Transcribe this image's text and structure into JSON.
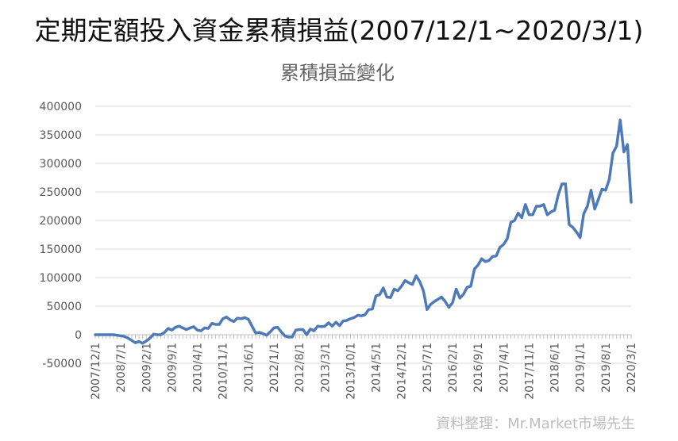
{
  "page": {
    "title": "定期定額投入資金累積損益(2007/12/1~2020/3/1)",
    "source": "資料整理：Mr.Market市場先生"
  },
  "chart_data": {
    "type": "line",
    "title": "累積損益變化",
    "xlabel": "",
    "ylabel": "",
    "ylim": [
      -50000,
      400000
    ],
    "yticks": [
      -50000,
      0,
      50000,
      100000,
      150000,
      200000,
      250000,
      300000,
      350000,
      400000
    ],
    "ytick_labels": [
      "-50000",
      "0",
      "50000",
      "100000",
      "150000",
      "200000",
      "250000",
      "300000",
      "350000",
      "400000"
    ],
    "xtick_labels": [
      "2007/12/1",
      "2008/7/1",
      "2009/2/1",
      "2009/9/1",
      "2010/4/1",
      "2010/11/1",
      "2011/6/1",
      "2012/1/1",
      "2012/8/1",
      "2013/3/1",
      "2013/10/1",
      "2014/5/1",
      "2014/12/1",
      "2015/7/1",
      "2016/2/1",
      "2016/9/1",
      "2017/4/1",
      "2017/11/1",
      "2018/6/1",
      "2019/1/1",
      "2019/8/1",
      "2020/3/1"
    ],
    "grid": true,
    "legend": "none",
    "line_color": "#4e7ab8",
    "series": [
      {
        "x": [
          "2007/12/1",
          "2008/1/1",
          "2008/2/1",
          "2008/3/1",
          "2008/4/1",
          "2008/5/1",
          "2008/6/1",
          "2008/7/1",
          "2008/8/1",
          "2008/9/1",
          "2008/10/1",
          "2008/11/1",
          "2008/12/1",
          "2009/1/1",
          "2009/2/1",
          "2009/3/1",
          "2009/4/1",
          "2009/5/1",
          "2009/6/1",
          "2009/7/1",
          "2009/8/1",
          "2009/9/1",
          "2009/10/1",
          "2009/11/1",
          "2009/12/1",
          "2010/1/1",
          "2010/2/1",
          "2010/3/1",
          "2010/4/1",
          "2010/5/1",
          "2010/6/1",
          "2010/7/1",
          "2010/8/1",
          "2010/9/1",
          "2010/10/1",
          "2010/11/1",
          "2010/12/1",
          "2011/1/1",
          "2011/2/1",
          "2011/3/1",
          "2011/4/1",
          "2011/5/1",
          "2011/6/1",
          "2011/7/1",
          "2011/8/1",
          "2011/9/1",
          "2011/10/1",
          "2011/11/1",
          "2011/12/1",
          "2012/1/1",
          "2012/2/1",
          "2012/3/1",
          "2012/4/1",
          "2012/5/1",
          "2012/6/1",
          "2012/7/1",
          "2012/8/1",
          "2012/9/1",
          "2012/10/1",
          "2012/11/1",
          "2012/12/1",
          "2013/1/1",
          "2013/2/1",
          "2013/3/1",
          "2013/4/1",
          "2013/5/1",
          "2013/6/1",
          "2013/7/1",
          "2013/8/1",
          "2013/9/1",
          "2013/10/1",
          "2013/11/1",
          "2013/12/1",
          "2014/1/1",
          "2014/2/1",
          "2014/3/1",
          "2014/4/1",
          "2014/5/1",
          "2014/6/1",
          "2014/7/1",
          "2014/8/1",
          "2014/9/1",
          "2014/10/1",
          "2014/11/1",
          "2014/12/1",
          "2015/1/1",
          "2015/2/1",
          "2015/3/1",
          "2015/4/1",
          "2015/5/1",
          "2015/6/1",
          "2015/7/1",
          "2015/8/1",
          "2015/9/1",
          "2015/10/1",
          "2015/11/1",
          "2015/12/1",
          "2016/1/1",
          "2016/2/1",
          "2016/3/1",
          "2016/4/1",
          "2016/5/1",
          "2016/6/1",
          "2016/7/1",
          "2016/8/1",
          "2016/9/1",
          "2016/10/1",
          "2016/11/1",
          "2016/12/1",
          "2017/1/1",
          "2017/2/1",
          "2017/3/1",
          "2017/4/1",
          "2017/5/1",
          "2017/6/1",
          "2017/7/1",
          "2017/8/1",
          "2017/9/1",
          "2017/10/1",
          "2017/11/1",
          "2017/12/1",
          "2018/1/1",
          "2018/2/1",
          "2018/3/1",
          "2018/4/1",
          "2018/5/1",
          "2018/6/1",
          "2018/7/1",
          "2018/8/1",
          "2018/9/1",
          "2018/10/1",
          "2018/11/1",
          "2018/12/1",
          "2019/1/1",
          "2019/2/1",
          "2019/3/1",
          "2019/4/1",
          "2019/5/1",
          "2019/6/1",
          "2019/7/1",
          "2019/8/1",
          "2019/9/1",
          "2019/10/1",
          "2019/11/1",
          "2019/12/1",
          "2020/1/1",
          "2020/2/1",
          "2020/3/1"
        ],
        "values": [
          0,
          0,
          0,
          0,
          0,
          0,
          -1000,
          -2000,
          -3000,
          -6000,
          -10000,
          -14000,
          -12000,
          -15000,
          -11000,
          -6000,
          1000,
          0,
          0,
          4000,
          11000,
          8000,
          13000,
          15000,
          12000,
          9000,
          12000,
          14000,
          8000,
          7000,
          12000,
          11000,
          20000,
          18000,
          18000,
          28000,
          31000,
          26000,
          23000,
          29000,
          28000,
          30000,
          27000,
          15000,
          3000,
          4000,
          2000,
          -1000,
          5000,
          12000,
          13000,
          5000,
          -2000,
          -4000,
          -4000,
          8000,
          9000,
          9000,
          0,
          10000,
          7000,
          15000,
          14000,
          15000,
          21000,
          15000,
          22000,
          16000,
          24000,
          25000,
          28000,
          30000,
          34000,
          33000,
          35000,
          44000,
          45000,
          68000,
          70000,
          82000,
          66000,
          65000,
          80000,
          77000,
          85000,
          95000,
          91000,
          88000,
          103000,
          93000,
          77000,
          44000,
          53000,
          58000,
          62000,
          66000,
          58000,
          48000,
          56000,
          80000,
          64000,
          71000,
          83000,
          85000,
          115000,
          122000,
          133000,
          128000,
          130000,
          137000,
          138000,
          153000,
          158000,
          168000,
          197000,
          200000,
          213000,
          205000,
          228000,
          210000,
          210000,
          225000,
          225000,
          228000,
          210000,
          215000,
          218000,
          245000,
          264000,
          264000,
          193000,
          188000,
          180000,
          170000,
          212000,
          225000,
          253000,
          220000,
          237000,
          255000,
          253000,
          272000,
          318000,
          330000,
          376000,
          320000,
          333000,
          232000
        ]
      }
    ]
  }
}
